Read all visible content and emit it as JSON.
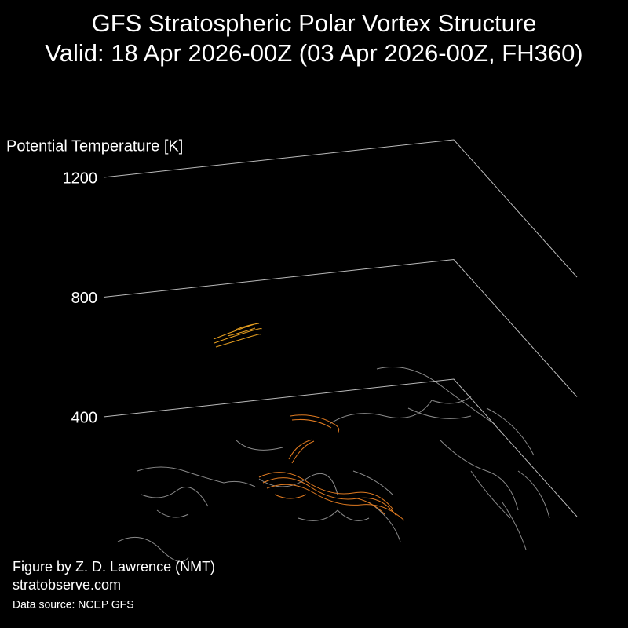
{
  "chart_data": {
    "type": "isosurface3d",
    "title": "GFS Stratospheric Polar Vortex Structure",
    "subtitle": "Valid: 18 Apr 2026-00Z  (03 Apr 2026-00Z, FH360)",
    "zlabel": "Potential Temperature [K]",
    "zlim": [
      400,
      1200
    ],
    "zticks": [
      400,
      800,
      1200
    ],
    "credits": [
      "Figure by Z. D. Lawrence (NMT)",
      "stratobserve.com"
    ],
    "source": "Data source: NCEP GFS"
  }
}
